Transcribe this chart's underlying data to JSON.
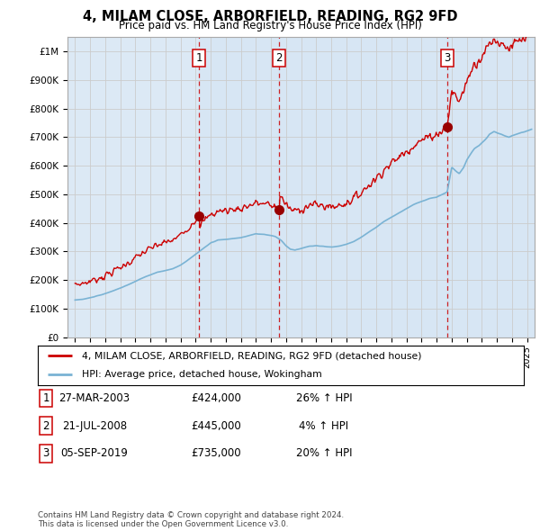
{
  "title": "4, MILAM CLOSE, ARBORFIELD, READING, RG2 9FD",
  "subtitle": "Price paid vs. HM Land Registry's House Price Index (HPI)",
  "background_color": "#ffffff",
  "plot_bg_color": "#dce9f5",
  "grid_color": "#cccccc",
  "sale_dates": [
    2003.23,
    2008.55,
    2019.68
  ],
  "sale_prices": [
    424000,
    445000,
    735000
  ],
  "sale_labels": [
    "1",
    "2",
    "3"
  ],
  "legend_line1": "4, MILAM CLOSE, ARBORFIELD, READING, RG2 9FD (detached house)",
  "legend_line2": "HPI: Average price, detached house, Wokingham",
  "table_data": [
    [
      "1",
      "27-MAR-2003",
      "£424,000",
      "26% ↑ HPI"
    ],
    [
      "2",
      "21-JUL-2008",
      "£445,000",
      "4% ↑ HPI"
    ],
    [
      "3",
      "05-SEP-2019",
      "£735,000",
      "20% ↑ HPI"
    ]
  ],
  "footer": "Contains HM Land Registry data © Crown copyright and database right 2024.\nThis data is licensed under the Open Government Licence v3.0.",
  "hpi_color": "#7ab3d4",
  "price_color": "#cc0000",
  "sale_line_color": "#cc0000",
  "ylim": [
    0,
    1050000
  ],
  "yticks": [
    0,
    100000,
    200000,
    300000,
    400000,
    500000,
    600000,
    700000,
    800000,
    900000,
    1000000
  ],
  "ytick_labels": [
    "£0",
    "£100K",
    "£200K",
    "£300K",
    "£400K",
    "£500K",
    "£600K",
    "£700K",
    "£800K",
    "£900K",
    "£1M"
  ],
  "xlim_start": 1994.5,
  "xlim_end": 2025.5
}
